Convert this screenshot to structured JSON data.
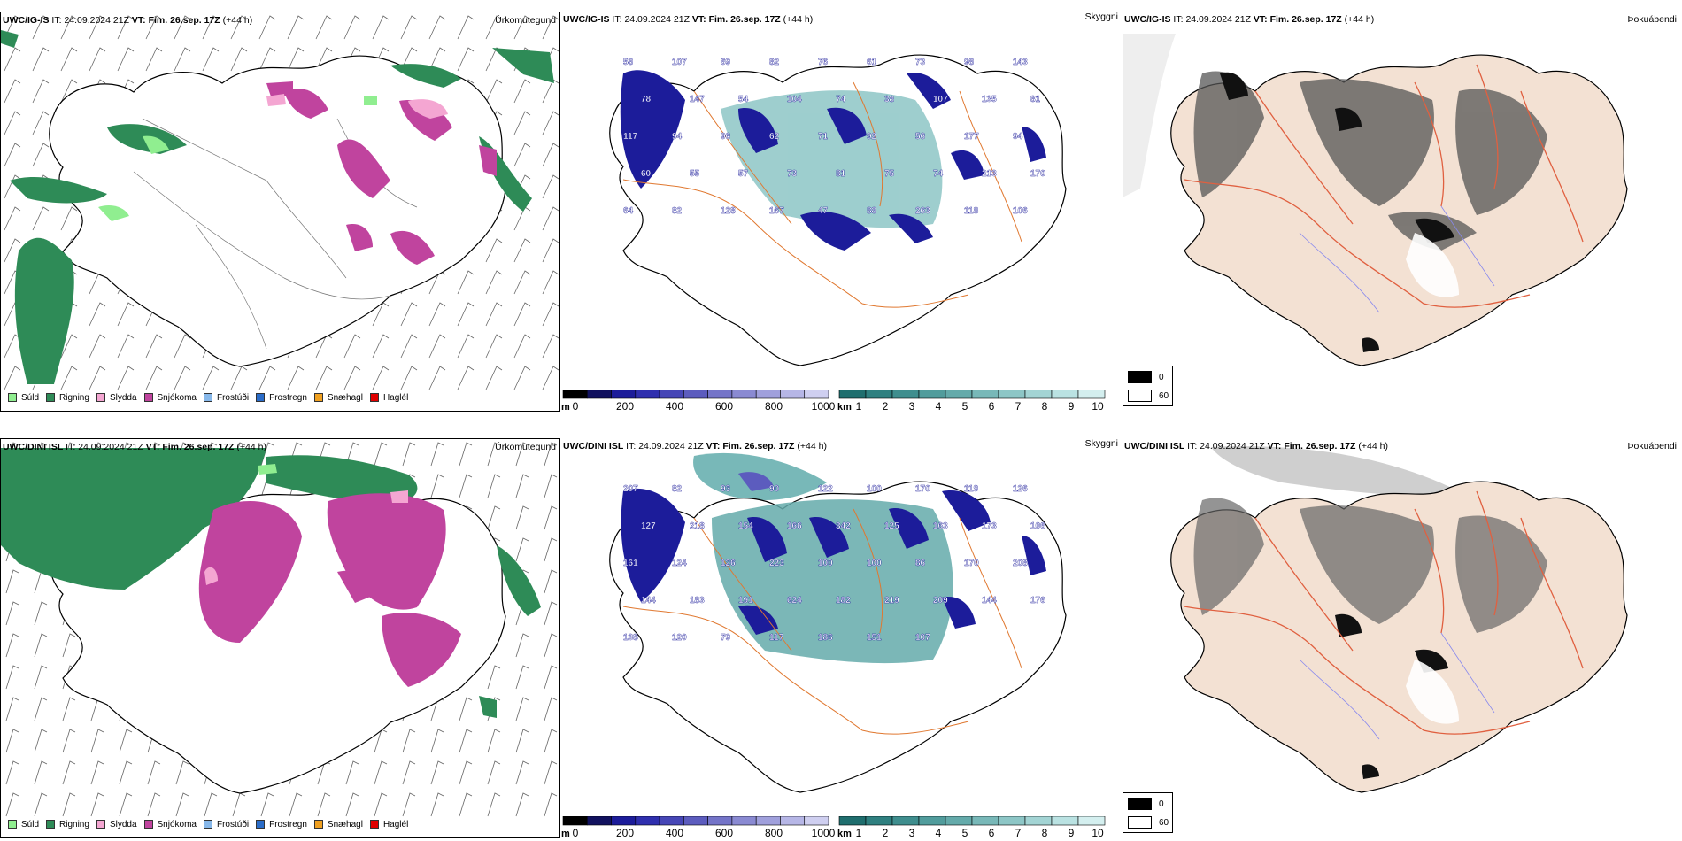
{
  "rows": [
    {
      "model": "UWC/IG-IS",
      "it_label": "IT:",
      "it_value": "24.09.2024 21Z",
      "vt_label": "VT:",
      "vt_value": "Fim. 26.sep. 17Z",
      "lead": "(+44 h)",
      "precip_title": "Úrkomutegund",
      "vis_title": "Skyggni",
      "cloud_title": "Þokuábendi",
      "height_labels": [
        "58",
        "107",
        "69",
        "82",
        "76",
        "61",
        "73",
        "98",
        "143",
        "78",
        "147",
        "54",
        "104",
        "74",
        "38",
        "107",
        "135",
        "81",
        "117",
        "94",
        "96",
        "62",
        "71",
        "92",
        "56",
        "177",
        "94",
        "60",
        "55",
        "57",
        "73",
        "81",
        "75",
        "74",
        "213",
        "170",
        "64",
        "82",
        "128",
        "167",
        "47",
        "88",
        "263",
        "118",
        "106"
      ]
    },
    {
      "model": "UWC/DINI ISL",
      "it_label": "IT:",
      "it_value": "24.09.2024 21Z",
      "vt_label": "VT:",
      "vt_value": "Fim. 26.sep. 17Z",
      "lead": "(+44 h)",
      "precip_title": "Úrkomutegund",
      "vis_title": "Skyggni",
      "cloud_title": "Þokuábendi",
      "height_labels": [
        "207",
        "82",
        "93",
        "90",
        "122",
        "100",
        "170",
        "119",
        "126",
        "127",
        "218",
        "154",
        "166",
        "342",
        "125",
        "163",
        "173",
        "106",
        "161",
        "124",
        "126",
        "223",
        "100",
        "100",
        "86",
        "170",
        "208",
        "144",
        "183",
        "191",
        "624",
        "182",
        "219",
        "209",
        "144",
        "176",
        "138",
        "120",
        "79",
        "117",
        "186",
        "151",
        "107"
      ]
    }
  ],
  "precip_legend": [
    {
      "label": "Súld",
      "color": "#90ee90"
    },
    {
      "label": "Rigning",
      "color": "#2e8b57"
    },
    {
      "label": "Slydda",
      "color": "#f4a6d2"
    },
    {
      "label": "Snjókoma",
      "color": "#c0449e"
    },
    {
      "label": "Frostúði",
      "color": "#87b8ea"
    },
    {
      "label": "Frostregn",
      "color": "#2a6cc8"
    },
    {
      "label": "Snæhagl",
      "color": "#f0a020"
    },
    {
      "label": "Haglél",
      "color": "#e00000"
    }
  ],
  "height_bar": {
    "unit": "m",
    "ticks": [
      "0",
      "200",
      "400",
      "600",
      "800",
      "1000"
    ],
    "colors": [
      "#000000",
      "#11115e",
      "#1c1c9a",
      "#2f2fae",
      "#4646b6",
      "#5c5cbe",
      "#7474c8",
      "#8a8ad2",
      "#a0a0dc",
      "#b6b6e6",
      "#cfcff0"
    ]
  },
  "vis_bar": {
    "unit": "km",
    "ticks": [
      "1",
      "2",
      "3",
      "4",
      "5",
      "6",
      "7",
      "8",
      "9",
      "10"
    ],
    "colors": [
      "#1f6e6e",
      "#2f8080",
      "#3f8e8e",
      "#519c9c",
      "#64aaaa",
      "#78b8b8",
      "#8dc6c6",
      "#a3d4d4",
      "#bae2e2",
      "#d4efef"
    ]
  },
  "cloud_legend": [
    {
      "label": "0",
      "color": "#000000"
    },
    {
      "label": "60",
      "color": "#ffffff"
    }
  ],
  "colors": {
    "rain": "#2e8b57",
    "snow": "#c0449e",
    "drizzle": "#90ee90",
    "sleet": "#f4a6d2",
    "freezing": "#2a6cc8",
    "land": "#f3e1d3",
    "road": "#e07830",
    "river": "#8888ee",
    "coast": "#000000"
  }
}
